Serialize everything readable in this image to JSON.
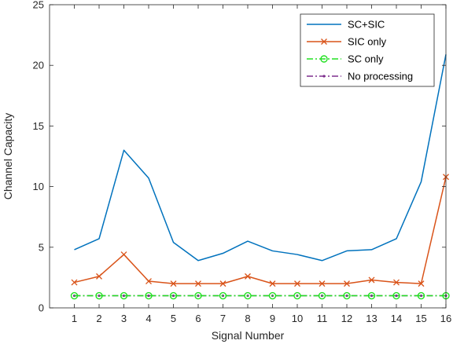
{
  "chart_data": {
    "type": "line",
    "xlabel": "Signal Number",
    "ylabel": "Channel Capacity",
    "xlim": [
      0,
      16
    ],
    "ylim": [
      0,
      25
    ],
    "xticks": [
      1,
      2,
      3,
      4,
      5,
      6,
      7,
      8,
      9,
      10,
      11,
      12,
      13,
      14,
      15,
      16
    ],
    "yticks": [
      0,
      5,
      10,
      15,
      20,
      25
    ],
    "grid": false,
    "legend_position": "top-right",
    "x": [
      1,
      2,
      3,
      4,
      5,
      6,
      7,
      8,
      9,
      10,
      11,
      12,
      13,
      14,
      15,
      16
    ],
    "series": [
      {
        "name": "SC+SIC",
        "color": "#0072BD",
        "line_style": "solid",
        "marker": "none",
        "values": [
          4.8,
          5.7,
          13.0,
          10.7,
          5.4,
          3.9,
          4.5,
          5.5,
          4.7,
          4.4,
          3.9,
          4.7,
          4.8,
          5.7,
          10.4,
          20.9
        ]
      },
      {
        "name": "SIC only",
        "color": "#D95319",
        "line_style": "solid",
        "marker": "x",
        "values": [
          2.1,
          2.6,
          4.4,
          2.2,
          2.0,
          2.0,
          2.0,
          2.6,
          2.0,
          2.0,
          2.0,
          2.0,
          2.3,
          2.1,
          2.0,
          10.8
        ]
      },
      {
        "name": "SC only",
        "color": "#22E022",
        "line_style": "dash-dot",
        "marker": "circle",
        "values": [
          1.0,
          1.0,
          1.0,
          1.0,
          1.0,
          1.0,
          1.0,
          1.0,
          1.0,
          1.0,
          1.0,
          1.0,
          1.0,
          1.0,
          1.0,
          1.0
        ]
      },
      {
        "name": "No processing",
        "color": "#7E2F8E",
        "line_style": "dash-dot",
        "marker": "dot",
        "values": [
          1.0,
          1.0,
          1.0,
          1.0,
          1.0,
          1.0,
          1.0,
          1.0,
          1.0,
          1.0,
          1.0,
          1.0,
          1.0,
          1.0,
          1.0,
          1.0
        ]
      }
    ]
  }
}
